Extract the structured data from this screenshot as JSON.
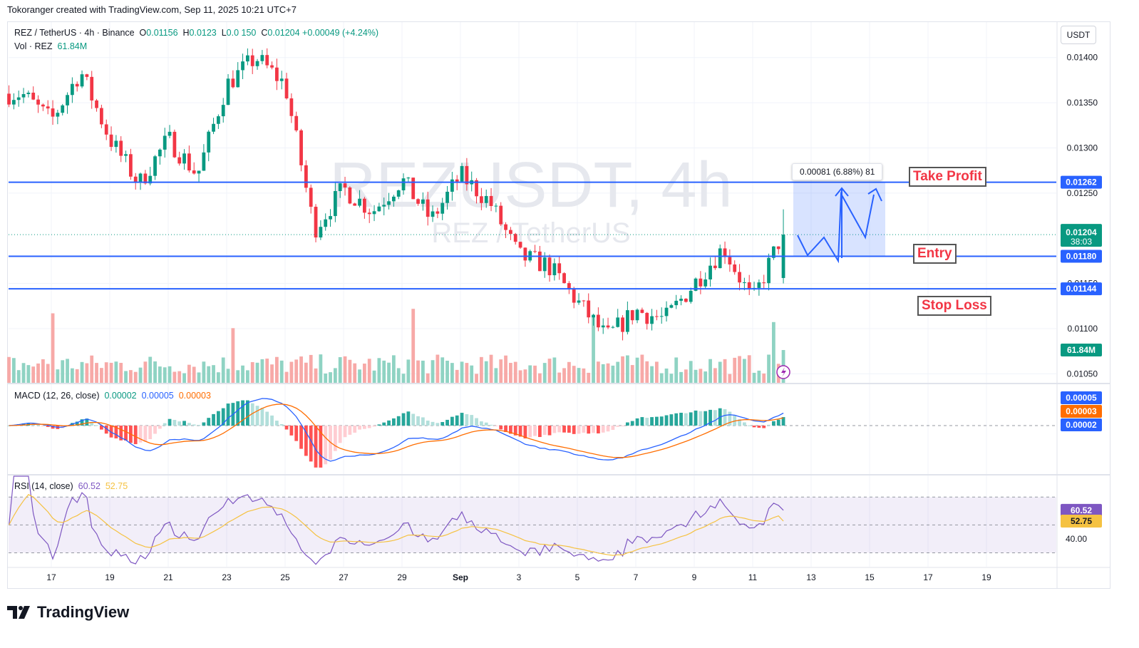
{
  "header": {
    "attribution": "Tokoranger created with TradingView.com, Sep 11, 2025 10:21 UTC+7"
  },
  "legend": {
    "symbol": "REZ / TetherUS · 4h · Binance",
    "o_label": "O",
    "o_value": "0.01156",
    "h_label": "H",
    "h_value": "0.0123",
    "l_label": "L",
    "l_value": "0.0 150",
    "c_label": "C",
    "c_value": "0.01204",
    "change": "+0.00049 (+4.24%)",
    "vol_label": "Vol · REZ",
    "vol_value": "61.84M"
  },
  "watermark": {
    "title": "REZUSDT, 4h",
    "subtitle": "REZ / TetherUS"
  },
  "currency_button": "USDT",
  "measure": {
    "text": "0.00081 (6.88%) 81"
  },
  "levels": {
    "take_profit": {
      "label": "Take Profit",
      "price": 0.01262,
      "tag": "0.01262"
    },
    "entry": {
      "label": "Entry",
      "price": 0.0118,
      "tag": "0.01180"
    },
    "stop_loss": {
      "label": "Stop Loss",
      "price": 0.01144,
      "tag": "0.01144"
    }
  },
  "current_price": {
    "value": "0.01204",
    "countdown": "38:03"
  },
  "volume_tag": "61.84M",
  "macd_legend": {
    "name": "MACD (12, 26, close)",
    "hist": "0.00002",
    "macd": "0.00005",
    "signal": "0.00003"
  },
  "macd_tags": {
    "macd": "0.00005",
    "signal": "0.00003",
    "hist": "0.00002"
  },
  "rsi_legend": {
    "name": "RSI (14, close)",
    "rsi": "60.52",
    "ma": "52.75"
  },
  "rsi_tags": {
    "rsi": "60.52",
    "ma": "52.75",
    "level": "40.00"
  },
  "brand": "TradingView",
  "colors": {
    "up": "#089981",
    "down": "#f23645",
    "level": "#2962ff",
    "macd": "#2962ff",
    "signal": "#ff6d00",
    "rsi": "#7e57c2",
    "rsi_ma": "#f5c242"
  },
  "chart_data": {
    "type": "candlestick",
    "title": "REZUSDT, 4h",
    "price_axis_ticks": [
      "0.01400",
      "0.01350",
      "0.01300",
      "0.01250",
      "0.01150",
      "0.01100",
      "0.01050"
    ],
    "price_ylim": [
      0.0104,
      0.0144
    ],
    "time_axis_ticks": [
      "17",
      "19",
      "21",
      "23",
      "25",
      "27",
      "29",
      "Sep",
      "3",
      "5",
      "7",
      "9",
      "11",
      "13",
      "15",
      "17",
      "19"
    ],
    "ohlc_anchor_points": [
      {
        "date": "Aug 16",
        "close": 0.0136
      },
      {
        "date": "Aug 17",
        "close": 0.0133
      },
      {
        "date": "Aug 18",
        "close": 0.01385
      },
      {
        "date": "Aug 19",
        "close": 0.0131
      },
      {
        "date": "Aug 20",
        "close": 0.0126
      },
      {
        "date": "Aug 21",
        "close": 0.0131
      },
      {
        "date": "Aug 22",
        "close": 0.0127
      },
      {
        "date": "Aug 23",
        "close": 0.0137
      },
      {
        "date": "Aug 24",
        "close": 0.014
      },
      {
        "date": "Aug 25",
        "close": 0.0137
      },
      {
        "date": "Aug 26",
        "close": 0.0121
      },
      {
        "date": "Aug 27",
        "close": 0.01255
      },
      {
        "date": "Aug 28",
        "close": 0.0123
      },
      {
        "date": "Aug 29",
        "close": 0.01265
      },
      {
        "date": "Aug 30",
        "close": 0.0122
      },
      {
        "date": "Aug 31",
        "close": 0.0127
      },
      {
        "date": "Sep 1",
        "close": 0.0124
      },
      {
        "date": "Sep 2",
        "close": 0.0118
      },
      {
        "date": "Sep 3",
        "close": 0.0117
      },
      {
        "date": "Sep 4",
        "close": 0.0113
      },
      {
        "date": "Sep 5",
        "close": 0.0109
      },
      {
        "date": "Sep 6",
        "close": 0.0112
      },
      {
        "date": "Sep 7",
        "close": 0.0111
      },
      {
        "date": "Sep 8",
        "close": 0.0115
      },
      {
        "date": "Sep 9",
        "close": 0.0119
      },
      {
        "date": "Sep 10",
        "close": 0.0113
      },
      {
        "date": "Sep 11",
        "close": 0.01204
      }
    ],
    "horizontal_levels": [
      {
        "name": "Take Profit",
        "value": 0.01262
      },
      {
        "name": "Entry",
        "value": 0.0118
      },
      {
        "name": "Stop Loss",
        "value": 0.01144
      }
    ],
    "rsi_ylim": [
      20,
      85
    ],
    "rsi_last": 60.52,
    "rsi_ma_last": 52.75
  }
}
